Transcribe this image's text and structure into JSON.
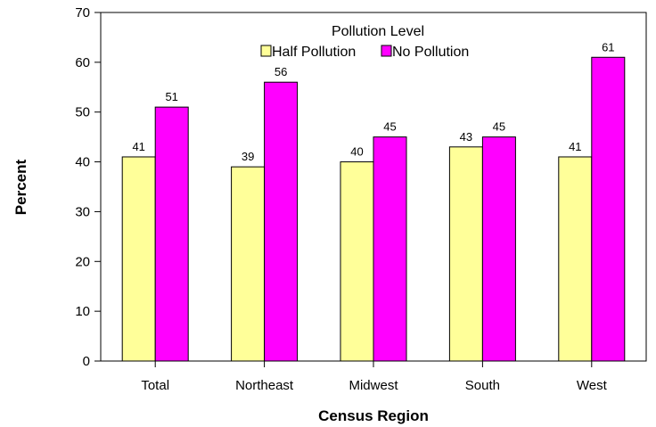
{
  "chart_data": {
    "type": "bar",
    "categories": [
      "Total",
      "Northeast",
      "Midwest",
      "South",
      "West"
    ],
    "series": [
      {
        "name": "Half Pollution",
        "values": [
          41,
          39,
          40,
          43,
          41
        ],
        "color": "#ffff99"
      },
      {
        "name": "No Pollution",
        "values": [
          51,
          56,
          45,
          45,
          61
        ],
        "color": "#ff00ff"
      }
    ],
    "xlabel": "Census Region",
    "ylabel": "Percent",
    "ylim": [
      0,
      70
    ],
    "yticks": [
      0,
      10,
      20,
      30,
      40,
      50,
      60,
      70
    ],
    "legend": {
      "title": "Pollution Level",
      "position": "top-center"
    },
    "grid": false
  }
}
